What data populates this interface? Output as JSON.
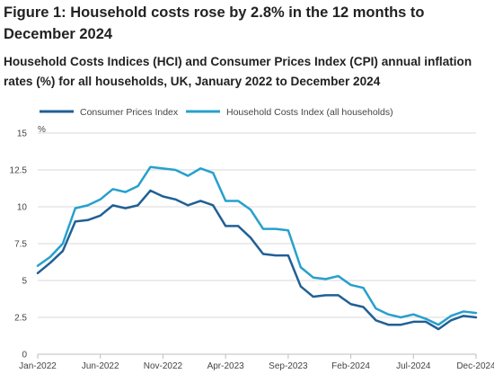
{
  "figure": {
    "title": "Figure 1: Household costs rose by 2.8% in the 12 months to December 2024",
    "subtitle": "Household Costs Indices (HCI) and Consumer Prices Index (CPI) annual inflation rates (%) for all households, UK, January 2022 to December 2024"
  },
  "colors": {
    "cpi": "#206095",
    "hci": "#27A0CC",
    "grid": "#d9d9d9",
    "axis": "#bebebe"
  },
  "chart_data": {
    "type": "line",
    "ylabel": "%",
    "ylim": [
      0,
      15
    ],
    "yticks": [
      0,
      2.5,
      5,
      7.5,
      10,
      12.5,
      15
    ],
    "ytick_labels": [
      "0",
      "2.5",
      "5",
      "7.5",
      "10",
      "12.5",
      "15"
    ],
    "grid": true,
    "legend_position": "top-left",
    "x": [
      "Jan-2022",
      "Feb-2022",
      "Mar-2022",
      "Apr-2022",
      "May-2022",
      "Jun-2022",
      "Jul-2022",
      "Aug-2022",
      "Sep-2022",
      "Oct-2022",
      "Nov-2022",
      "Dec-2022",
      "Jan-2023",
      "Feb-2023",
      "Mar-2023",
      "Apr-2023",
      "May-2023",
      "Jun-2023",
      "Jul-2023",
      "Aug-2023",
      "Sep-2023",
      "Oct-2023",
      "Nov-2023",
      "Dec-2023",
      "Jan-2024",
      "Feb-2024",
      "Mar-2024",
      "Apr-2024",
      "May-2024",
      "Jun-2024",
      "Jul-2024",
      "Aug-2024",
      "Sep-2024",
      "Oct-2024",
      "Nov-2024",
      "Dec-2024"
    ],
    "xtick_labels": [
      "Jan-2022",
      "Jun-2022",
      "Nov-2022",
      "Apr-2023",
      "Sep-2023",
      "Feb-2024",
      "Jul-2024",
      "Dec-2024"
    ],
    "series": [
      {
        "name": "Consumer Prices Index",
        "values": [
          5.5,
          6.2,
          7.0,
          9.0,
          9.1,
          9.4,
          10.1,
          9.9,
          10.1,
          11.1,
          10.7,
          10.5,
          10.1,
          10.4,
          10.1,
          8.7,
          8.7,
          7.9,
          6.8,
          6.7,
          6.7,
          4.6,
          3.9,
          4.0,
          4.0,
          3.4,
          3.2,
          2.3,
          2.0,
          2.0,
          2.2,
          2.2,
          1.7,
          2.3,
          2.6,
          2.5
        ]
      },
      {
        "name": "Household Costs Index (all households)",
        "values": [
          6.0,
          6.6,
          7.5,
          9.9,
          10.1,
          10.5,
          11.2,
          11.0,
          11.4,
          12.7,
          12.6,
          12.5,
          12.1,
          12.6,
          12.3,
          10.4,
          10.4,
          9.8,
          8.5,
          8.5,
          8.4,
          5.9,
          5.2,
          5.1,
          5.3,
          4.7,
          4.5,
          3.1,
          2.7,
          2.5,
          2.7,
          2.4,
          2.0,
          2.6,
          2.9,
          2.8
        ]
      }
    ]
  }
}
